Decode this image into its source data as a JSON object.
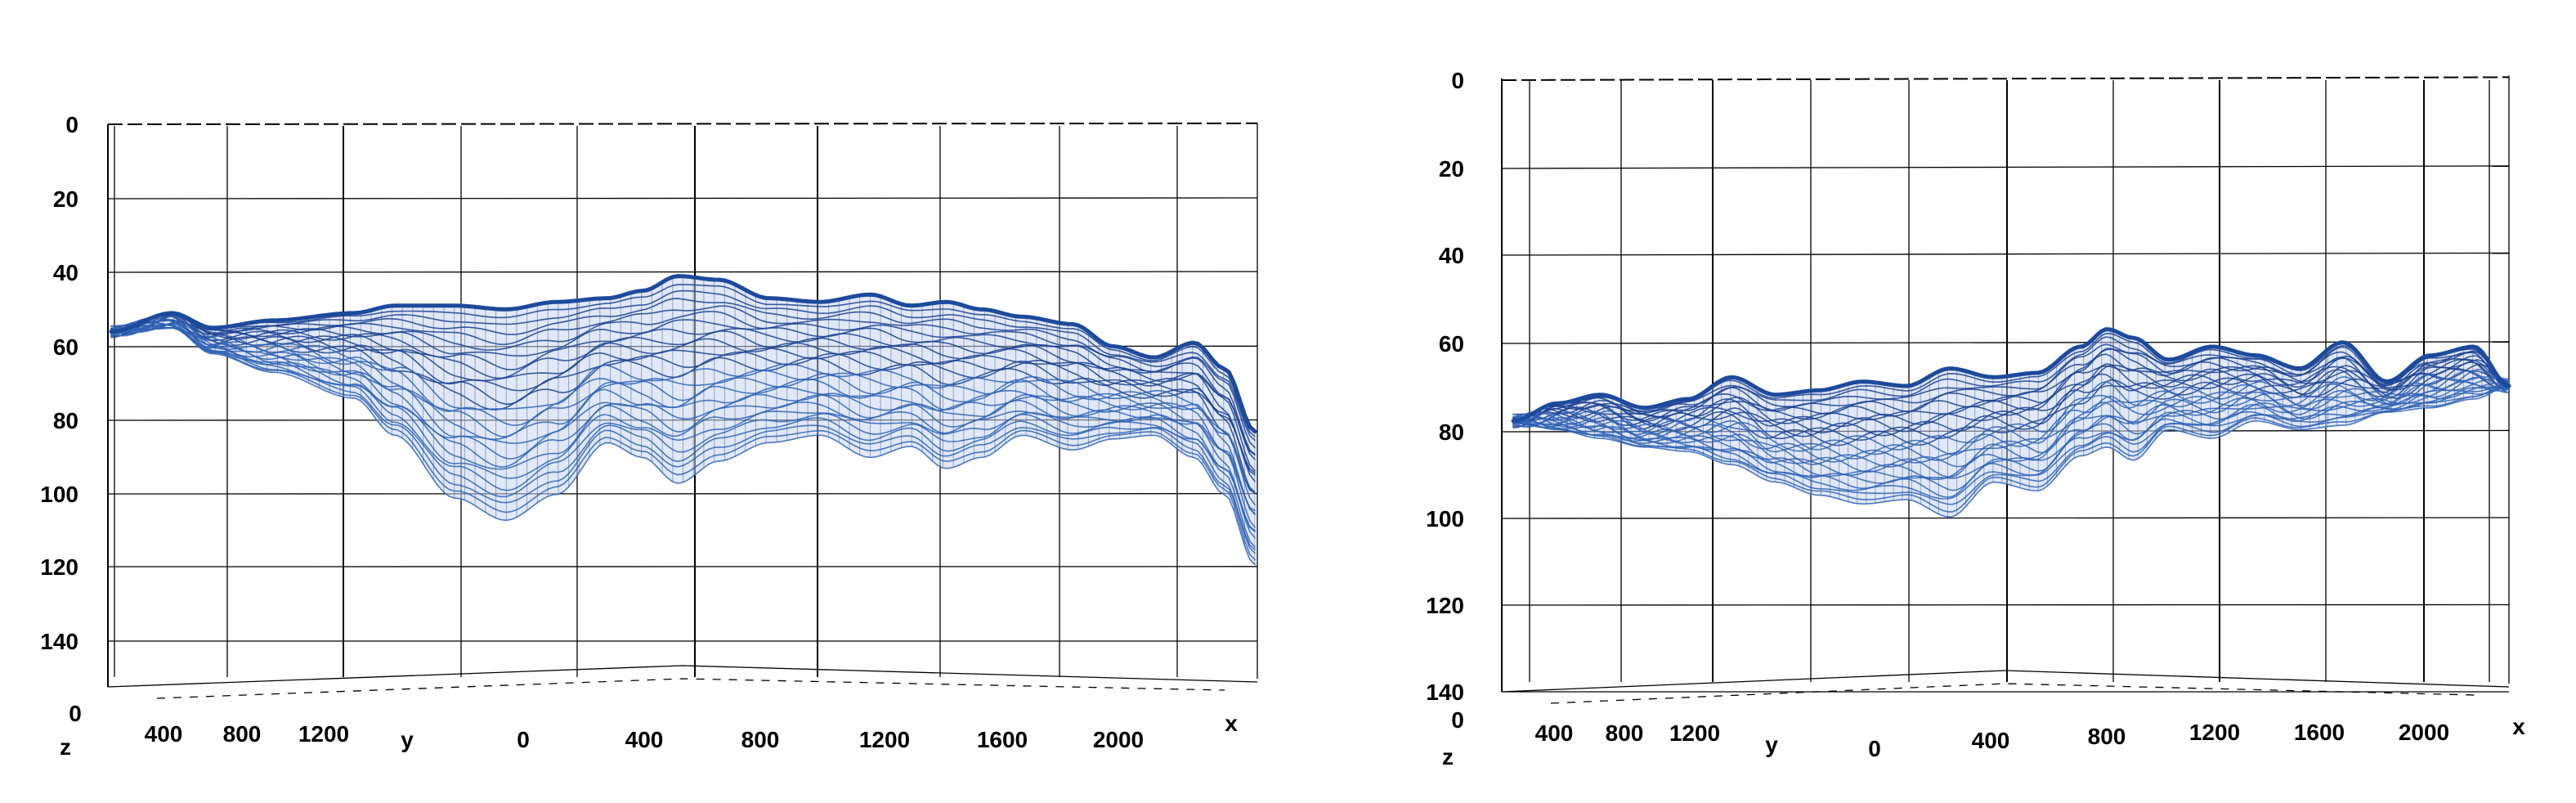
{
  "chart_data": [
    {
      "type": "surface3d",
      "wireframe": true,
      "view": "front",
      "z_axis": {
        "label": "z",
        "ticks": [
          "0",
          "20",
          "40",
          "60",
          "80",
          "100",
          "120",
          "140"
        ],
        "inverted": true,
        "range": [
          0,
          152
        ]
      },
      "y_axis": {
        "label": "y",
        "ticks": [
          "0",
          "400",
          "800",
          "1200"
        ]
      },
      "x_axis": {
        "label": "x",
        "ticks": [
          "0",
          "400",
          "800",
          "1200",
          "1600",
          "2000"
        ],
        "range": [
          0,
          2300
        ]
      },
      "grid": true,
      "surface_color": "#1c4a9c",
      "surface_profile": {
        "x": [
          0,
          120,
          200,
          320,
          480,
          560,
          680,
          780,
          880,
          980,
          1050,
          1120,
          1200,
          1300,
          1400,
          1500,
          1580,
          1650,
          1720,
          1800,
          1900,
          1980,
          2060,
          2140,
          2200,
          2260
        ],
        "top_depth": [
          56,
          51,
          55,
          53,
          51,
          49,
          49,
          50,
          48,
          47,
          45,
          41,
          42,
          47,
          48,
          46,
          49,
          48,
          50,
          52,
          54,
          60,
          63,
          59,
          66,
          83
        ],
        "bottom_depth": [
          56,
          55,
          62,
          67,
          74,
          84,
          101,
          107,
          100,
          86,
          90,
          97,
          91,
          86,
          84,
          90,
          87,
          93,
          90,
          84,
          88,
          85,
          84,
          90,
          100,
          119
        ]
      }
    },
    {
      "type": "surface3d",
      "wireframe": true,
      "view": "front",
      "z_axis": {
        "label": "z",
        "ticks": [
          "0",
          "20",
          "40",
          "60",
          "80",
          "100",
          "120",
          "140"
        ],
        "inverted": true,
        "range": [
          0,
          140
        ]
      },
      "y_axis": {
        "label": "y",
        "ticks": [
          "0",
          "400",
          "800",
          "1200"
        ]
      },
      "x_axis": {
        "label": "x",
        "ticks": [
          "0",
          "400",
          "800",
          "1200",
          "1600",
          "2000"
        ],
        "range": [
          0,
          2300
        ]
      },
      "grid": true,
      "surface_color": "#1c4a9c",
      "surface_profile": {
        "x": [
          0,
          100,
          200,
          300,
          400,
          500,
          600,
          700,
          800,
          900,
          1000,
          1100,
          1200,
          1300,
          1360,
          1420,
          1500,
          1600,
          1700,
          1800,
          1900,
          2000,
          2100,
          2200,
          2280
        ],
        "top_depth": [
          78,
          74,
          72,
          75,
          73,
          68,
          72,
          71,
          69,
          70,
          66,
          68,
          67,
          61,
          57,
          59,
          64,
          61,
          63,
          66,
          60,
          69,
          63,
          61,
          70
        ],
        "bottom_depth": [
          78,
          80,
          82,
          84,
          85,
          88,
          92,
          95,
          97,
          96,
          100,
          92,
          94,
          86,
          84,
          87,
          80,
          82,
          78,
          80,
          79,
          76,
          75,
          73,
          70
        ]
      }
    }
  ]
}
